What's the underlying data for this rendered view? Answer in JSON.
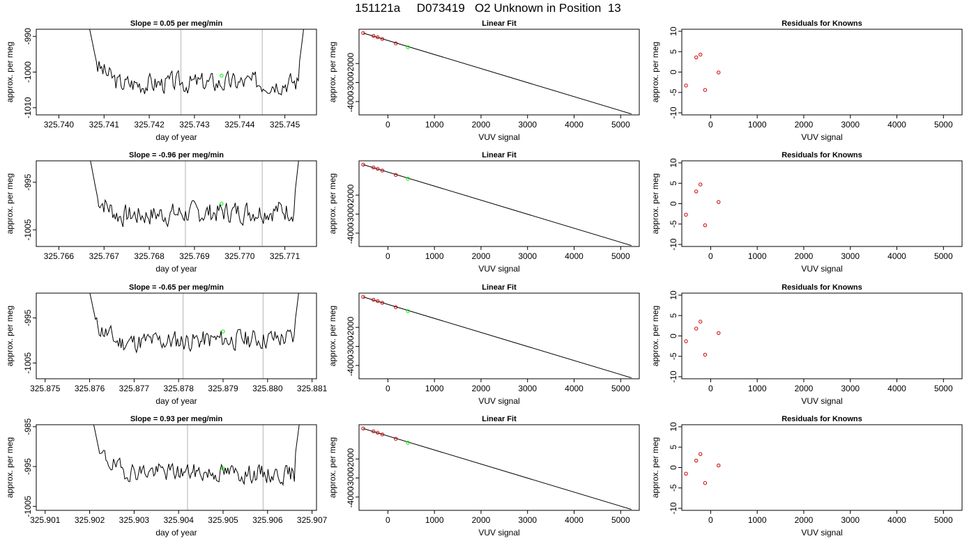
{
  "title": "151121a     D073419   O2 Unknown in Position  13",
  "colors": {
    "trace": "#000000",
    "marker_line": "#bebebe",
    "known_point": "#cc0000",
    "unknown_point": "#00ee00",
    "fit_line": "#000000",
    "axis": "#000000"
  },
  "chart_data": [
    {
      "type": "line",
      "row": 0,
      "title": "Slope =  0.05  per meg/min",
      "xlabel": "day of year",
      "ylabel": "approx. per meg",
      "xlim": [
        325.7395,
        325.7457
      ],
      "ylim": [
        -1012,
        -988
      ],
      "xticks": [
        "325.740",
        "325.741",
        "325.742",
        "325.743",
        "325.744",
        "325.745"
      ],
      "xtick_values": [
        325.74,
        325.741,
        325.742,
        325.743,
        325.744,
        325.745
      ],
      "yticks": [
        "-1010",
        "-1000",
        "-990"
      ],
      "ytick_values": [
        -1010,
        -1000,
        -990
      ],
      "vlines": [
        325.7427,
        325.7445
      ],
      "unknown_point": {
        "x": 325.7436,
        "y": -1001
      },
      "trace": {
        "x_start": 325.7406,
        "x_end": 325.7455,
        "baseline": -1003,
        "amplitude": 2.5,
        "trend": 0.3,
        "seed": 3
      }
    },
    {
      "type": "scatter",
      "row": 0,
      "title": "Linear Fit",
      "xlabel": "VUV signal",
      "ylabel": "approx. per meg",
      "xlim": [
        -620,
        5400
      ],
      "ylim": [
        -4700,
        -200
      ],
      "xticks": [
        "0",
        "1000",
        "2000",
        "3000",
        "4000",
        "5000"
      ],
      "xtick_values": [
        0,
        1000,
        2000,
        3000,
        4000,
        5000
      ],
      "yticks": [
        "-4000",
        "-3000",
        "-2000"
      ],
      "ytick_values": [
        -4000,
        -3000,
        -2000
      ],
      "known_points": [
        [
          -530,
          -400
        ],
        [
          -310,
          -550
        ],
        [
          -220,
          -620
        ],
        [
          -120,
          -710
        ],
        [
          170,
          -940
        ]
      ],
      "unknown_point": [
        430,
        -1150
      ],
      "fit_line": [
        [
          -530,
          -400
        ],
        [
          5230,
          -4650
        ]
      ]
    },
    {
      "type": "scatter",
      "row": 0,
      "title": "Residuals for Knowns",
      "xlabel": "VUV signal",
      "ylabel": "approx. per meg",
      "xlim": [
        -620,
        5400
      ],
      "ylim": [
        -10.5,
        10.5
      ],
      "xticks": [
        "0",
        "1000",
        "2000",
        "3000",
        "4000",
        "5000"
      ],
      "xtick_values": [
        0,
        1000,
        2000,
        3000,
        4000,
        5000
      ],
      "yticks": [
        "-10",
        "-5",
        "0",
        "5",
        "10"
      ],
      "ytick_values": [
        -10,
        -5,
        0,
        5,
        10
      ],
      "known_points": [
        [
          -530,
          -3.3
        ],
        [
          -310,
          3.6
        ],
        [
          -220,
          4.3
        ],
        [
          -120,
          -4.4
        ],
        [
          170,
          -0.1
        ]
      ]
    },
    {
      "type": "line",
      "row": 1,
      "title": "Slope =  -0.96  per meg/min",
      "xlabel": "day of year",
      "ylabel": "approx. per meg",
      "xlim": [
        325.7655,
        325.7717
      ],
      "ylim": [
        -1008.5,
        -990.5
      ],
      "xticks": [
        "325.766",
        "325.767",
        "325.768",
        "325.769",
        "325.770",
        "325.771"
      ],
      "xtick_values": [
        325.766,
        325.767,
        325.768,
        325.769,
        325.77,
        325.771
      ],
      "yticks": [
        "-1005",
        "-995"
      ],
      "ytick_values": [
        -1005,
        -995
      ],
      "vlines": [
        325.7688,
        325.7705
      ],
      "unknown_point": {
        "x": 325.7696,
        "y": -999.5
      },
      "trace": {
        "x_start": 325.7666,
        "x_end": 325.7714,
        "baseline": -1001.5,
        "amplitude": 2.0,
        "trend": 0.8,
        "seed": 7
      }
    },
    {
      "type": "scatter",
      "row": 1,
      "title": "Linear Fit",
      "xlabel": "VUV signal",
      "ylabel": "approx. per meg",
      "xlim": [
        -620,
        5400
      ],
      "ylim": [
        -4700,
        -200
      ],
      "xticks": [
        "0",
        "1000",
        "2000",
        "3000",
        "4000",
        "5000"
      ],
      "xtick_values": [
        0,
        1000,
        2000,
        3000,
        4000,
        5000
      ],
      "yticks": [
        "-4000",
        "-3000",
        "-2000"
      ],
      "ytick_values": [
        -4000,
        -3000,
        -2000
      ],
      "known_points": [
        [
          -530,
          -400
        ],
        [
          -310,
          -550
        ],
        [
          -220,
          -620
        ],
        [
          -120,
          -710
        ],
        [
          170,
          -940
        ]
      ],
      "unknown_point": [
        430,
        -1150
      ],
      "fit_line": [
        [
          -530,
          -400
        ],
        [
          5230,
          -4650
        ]
      ]
    },
    {
      "type": "scatter",
      "row": 1,
      "title": "Residuals for Knowns",
      "xlabel": "VUV signal",
      "ylabel": "approx. per meg",
      "xlim": [
        -620,
        5400
      ],
      "ylim": [
        -10.5,
        10.5
      ],
      "xticks": [
        "0",
        "1000",
        "2000",
        "3000",
        "4000",
        "5000"
      ],
      "xtick_values": [
        0,
        1000,
        2000,
        3000,
        4000,
        5000
      ],
      "yticks": [
        "-10",
        "-5",
        "0",
        "5",
        "10"
      ],
      "ytick_values": [
        -10,
        -5,
        0,
        5,
        10
      ],
      "known_points": [
        [
          -530,
          -2.7
        ],
        [
          -310,
          3.0
        ],
        [
          -220,
          4.7
        ],
        [
          -120,
          -5.3
        ],
        [
          170,
          0.4
        ]
      ]
    },
    {
      "type": "line",
      "row": 2,
      "title": "Slope =  -0.65  per meg/min",
      "xlabel": "day of year",
      "ylabel": "approx. per meg",
      "xlim": [
        325.8748,
        325.8811
      ],
      "ylim": [
        -1008.5,
        -989.5
      ],
      "xticks": [
        "325.875",
        "325.876",
        "325.877",
        "325.878",
        "325.879",
        "325.880",
        "325.881"
      ],
      "xtick_values": [
        325.875,
        325.876,
        325.877,
        325.878,
        325.879,
        325.88,
        325.881
      ],
      "yticks": [
        "-1005",
        "-995"
      ],
      "ytick_values": [
        -1005,
        -995
      ],
      "vlines": [
        325.8781,
        325.8799
      ],
      "unknown_point": {
        "x": 325.879,
        "y": -998
      },
      "trace": {
        "x_start": 325.8759,
        "x_end": 325.8808,
        "baseline": -1000,
        "amplitude": 2.0,
        "trend": 0.6,
        "seed": 11
      }
    },
    {
      "type": "scatter",
      "row": 2,
      "title": "Linear Fit",
      "xlabel": "VUV signal",
      "ylabel": "approx. per meg",
      "xlim": [
        -620,
        5400
      ],
      "ylim": [
        -4700,
        -200
      ],
      "xticks": [
        "0",
        "1000",
        "2000",
        "3000",
        "4000",
        "5000"
      ],
      "xtick_values": [
        0,
        1000,
        2000,
        3000,
        4000,
        5000
      ],
      "yticks": [
        "-4000",
        "-3000",
        "-2000"
      ],
      "ytick_values": [
        -4000,
        -3000,
        -2000
      ],
      "known_points": [
        [
          -530,
          -400
        ],
        [
          -310,
          -550
        ],
        [
          -220,
          -620
        ],
        [
          -120,
          -710
        ],
        [
          170,
          -940
        ]
      ],
      "unknown_point": [
        430,
        -1150
      ],
      "fit_line": [
        [
          -530,
          -400
        ],
        [
          5230,
          -4650
        ]
      ]
    },
    {
      "type": "scatter",
      "row": 2,
      "title": "Residuals for Knowns",
      "xlabel": "VUV signal",
      "ylabel": "approx. per meg",
      "xlim": [
        -620,
        5400
      ],
      "ylim": [
        -10.5,
        10.5
      ],
      "xticks": [
        "0",
        "1000",
        "2000",
        "3000",
        "4000",
        "5000"
      ],
      "xtick_values": [
        0,
        1000,
        2000,
        3000,
        4000,
        5000
      ],
      "yticks": [
        "-10",
        "-5",
        "0",
        "5",
        "10"
      ],
      "ytick_values": [
        -10,
        -5,
        0,
        5,
        10
      ],
      "known_points": [
        [
          -530,
          -1.3
        ],
        [
          -310,
          1.8
        ],
        [
          -220,
          3.5
        ],
        [
          -120,
          -4.6
        ],
        [
          170,
          0.7
        ]
      ]
    },
    {
      "type": "line",
      "row": 3,
      "title": "Slope =  0.93  per meg/min",
      "xlabel": "day of year",
      "ylabel": "approx. per meg",
      "xlim": [
        325.9008,
        325.9071
      ],
      "ylim": [
        -1006,
        -984.5
      ],
      "xticks": [
        "325.901",
        "325.902",
        "325.903",
        "325.904",
        "325.905",
        "325.906",
        "325.907"
      ],
      "xtick_values": [
        325.901,
        325.902,
        325.903,
        325.904,
        325.905,
        325.906,
        325.907
      ],
      "yticks": [
        "-1005",
        "-995",
        "-985"
      ],
      "ytick_values": [
        -1005,
        -995,
        -985
      ],
      "vlines": [
        325.9042,
        325.9059
      ],
      "unknown_point": {
        "x": 325.905,
        "y": -995.5
      },
      "trace": {
        "x_start": 325.902,
        "x_end": 325.9068,
        "baseline": -996.5,
        "amplitude": 2.0,
        "trend": -0.6,
        "seed": 19
      }
    },
    {
      "type": "scatter",
      "row": 3,
      "title": "Linear Fit",
      "xlabel": "VUV signal",
      "ylabel": "approx. per meg",
      "xlim": [
        -620,
        5400
      ],
      "ylim": [
        -4700,
        -200
      ],
      "xticks": [
        "0",
        "1000",
        "2000",
        "3000",
        "4000",
        "5000"
      ],
      "xtick_values": [
        0,
        1000,
        2000,
        3000,
        4000,
        5000
      ],
      "yticks": [
        "-4000",
        "-3000",
        "-2000"
      ],
      "ytick_values": [
        -4000,
        -3000,
        -2000
      ],
      "known_points": [
        [
          -530,
          -400
        ],
        [
          -310,
          -550
        ],
        [
          -220,
          -620
        ],
        [
          -120,
          -710
        ],
        [
          170,
          -940
        ]
      ],
      "unknown_point": [
        430,
        -1150
      ],
      "fit_line": [
        [
          -530,
          -400
        ],
        [
          5230,
          -4650
        ]
      ]
    },
    {
      "type": "scatter",
      "row": 3,
      "title": "Residuals for Knowns",
      "xlabel": "VUV signal",
      "ylabel": "approx. per meg",
      "xlim": [
        -620,
        5400
      ],
      "ylim": [
        -10.5,
        10.5
      ],
      "xticks": [
        "0",
        "1000",
        "2000",
        "3000",
        "4000",
        "5000"
      ],
      "xtick_values": [
        0,
        1000,
        2000,
        3000,
        4000,
        5000
      ],
      "yticks": [
        "-10",
        "-5",
        "0",
        "5",
        "10"
      ],
      "ytick_values": [
        -10,
        -5,
        0,
        5,
        10
      ],
      "known_points": [
        [
          -530,
          -1.5
        ],
        [
          -310,
          1.7
        ],
        [
          -220,
          3.3
        ],
        [
          -120,
          -3.8
        ],
        [
          170,
          0.5
        ]
      ]
    }
  ]
}
